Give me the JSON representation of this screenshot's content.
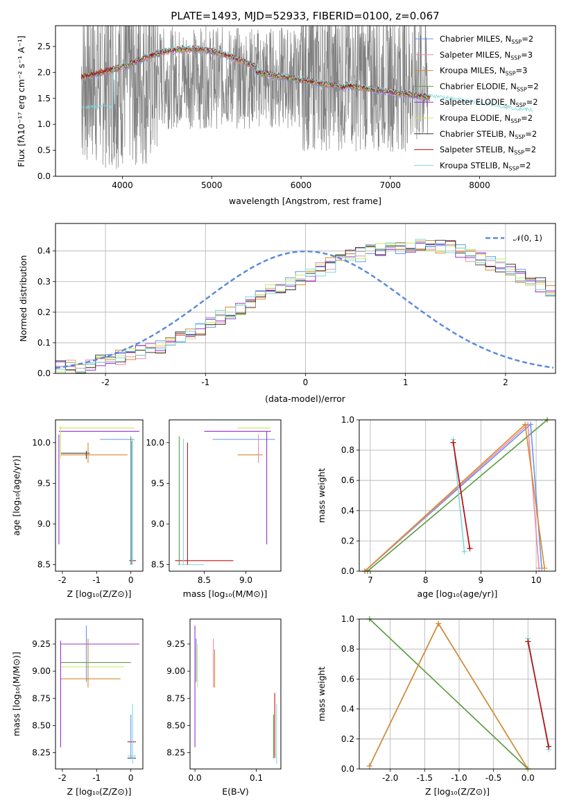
{
  "chart_data": [
    {
      "type": "line",
      "title": "PLATE=1493, MJD=52933, FIBERID=0100, z=0.067",
      "xlabel": "wavelength [Angstrom, rest frame]",
      "ylabel": "Flux [fλ10⁻¹⁷ erg cm⁻² s⁻¹ A⁻¹]",
      "xlim": [
        3250,
        8850
      ],
      "ylim": [
        0,
        2.9
      ],
      "xticks": [
        4000,
        5000,
        6000,
        7000,
        8000
      ],
      "yticks": [
        0.0,
        0.5,
        1.0,
        1.5,
        2.0,
        2.5
      ],
      "grid": false,
      "legend_position": "upper-right",
      "series": [
        {
          "name": "Chabrier MILES, N",
          "sub": "SSP",
          "suffix": "=2",
          "color": "#6495ED"
        },
        {
          "name": "Salpeter MILES, N",
          "sub": "SSP",
          "suffix": "=3",
          "color": "#E88AB4"
        },
        {
          "name": "Kroupa MILES, N",
          "sub": "SSP",
          "suffix": "=3",
          "color": "#D98A28"
        },
        {
          "name": "Chabrier ELODIE, N",
          "sub": "SSP",
          "suffix": "=2",
          "color": "#5C9B4A"
        },
        {
          "name": "Salpeter ELODIE, N",
          "sub": "SSP",
          "suffix": "=2",
          "color": "#9B30C9"
        },
        {
          "name": "Kroupa ELODIE, N",
          "sub": "SSP",
          "suffix": "=2",
          "color": "#C8EA5A"
        },
        {
          "name": "Chabrier STELIB, N",
          "sub": "SSP",
          "suffix": "=2",
          "color": "#3A3A3A"
        },
        {
          "name": "Salpeter STELIB, N",
          "sub": "SSP",
          "suffix": "=2",
          "color": "#C41010"
        },
        {
          "name": "Kroupa STELIB, N",
          "sub": "SSP",
          "suffix": "=2",
          "color": "#7FD8DC"
        }
      ]
    },
    {
      "type": "bar",
      "xlabel": "(data-model)/error",
      "ylabel": "Normed distribution",
      "xlim": [
        -2.5,
        2.5
      ],
      "ylim": [
        0,
        0.49
      ],
      "xticks": [
        -2,
        -1,
        0,
        1,
        2
      ],
      "yticks": [
        0.0,
        0.1,
        0.2,
        0.3,
        0.4
      ],
      "grid": true,
      "legend_position": "upper-right",
      "legend_label": "𝒩(0, 1)",
      "bin_width": 0.1,
      "bin_start": -2.5,
      "base_values": [
        0.02,
        0.022,
        0.026,
        0.032,
        0.038,
        0.045,
        0.052,
        0.06,
        0.07,
        0.08,
        0.09,
        0.105,
        0.12,
        0.135,
        0.15,
        0.17,
        0.185,
        0.2,
        0.215,
        0.235,
        0.25,
        0.265,
        0.28,
        0.295,
        0.31,
        0.325,
        0.34,
        0.355,
        0.365,
        0.38,
        0.39,
        0.4,
        0.405,
        0.41,
        0.415,
        0.418,
        0.42,
        0.418,
        0.415,
        0.41,
        0.4,
        0.39,
        0.375,
        0.36,
        0.35,
        0.335,
        0.32,
        0.305,
        0.29,
        0.27,
        0.255,
        0.24,
        0.22,
        0.205,
        0.19,
        0.17,
        0.155,
        0.14,
        0.125,
        0.11,
        0.1,
        0.088,
        0.078,
        0.068,
        0.06,
        0.052,
        0.045,
        0.038,
        0.033,
        0.028
      ],
      "series_colors": [
        "#6495ED",
        "#E88AB4",
        "#D98A28",
        "#9B30C9",
        "#C8EA5A",
        "#3A3A3A",
        "#7FD8DC"
      ]
    },
    {
      "type": "scatter",
      "xlabel": "Z [log₁₀(Z/Z⊙)]",
      "ylabel": "age  [log₁₀(age/yr)]",
      "xlim": [
        -2.2,
        0.35
      ],
      "ylim": [
        8.42,
        10.28
      ],
      "xticks": [
        -2,
        -1,
        0
      ],
      "yticks": [
        8.5,
        9.0,
        9.5,
        10.0
      ]
    },
    {
      "type": "scatter",
      "xlabel": "mass [log₁₀(M/M⊙)]",
      "xlim": [
        8.08,
        9.42
      ],
      "ylim": [
        8.42,
        10.28
      ],
      "xticks": [
        8.5,
        9.0
      ],
      "yticks": [
        8.5,
        9.0,
        9.5,
        10.0
      ]
    },
    {
      "type": "line",
      "xlabel": "age  [log₁₀(age/yr)]",
      "ylabel": "mass weight",
      "xlim": [
        6.8,
        10.35
      ],
      "ylim": [
        0,
        1
      ],
      "xticks": [
        7,
        8,
        9,
        10
      ],
      "yticks": [
        0.0,
        0.2,
        0.4,
        0.6,
        0.8,
        1.0
      ],
      "grid": true
    },
    {
      "type": "scatter",
      "xlabel": "Z [log₁₀(Z/Z⊙)]",
      "ylabel": "mass [log₁₀(M/M⊙)]",
      "xlim": [
        -2.2,
        0.35
      ],
      "ylim": [
        8.1,
        9.48
      ],
      "xticks": [
        -2,
        -1,
        0
      ],
      "yticks": [
        8.25,
        8.5,
        8.75,
        9.0,
        9.25
      ]
    },
    {
      "type": "scatter",
      "xlabel": "E(B-V)",
      "xlim": [
        -0.008,
        0.14
      ],
      "ylim": [
        8.1,
        9.48
      ],
      "xticks": [
        0.0,
        0.1
      ],
      "yticks": [
        8.25,
        8.5,
        8.75,
        9.0,
        9.25
      ]
    },
    {
      "type": "line",
      "xlabel": "Z [log₁₀(Z/Z⊙)]",
      "ylabel": "mass weight",
      "xlim": [
        -2.45,
        0.4
      ],
      "ylim": [
        0,
        1
      ],
      "xticks": [
        -2.0,
        -1.5,
        -1.0,
        -0.5,
        0.0
      ],
      "yticks": [
        0.0,
        0.2,
        0.4,
        0.6,
        0.8,
        1.0
      ],
      "grid": true
    }
  ]
}
